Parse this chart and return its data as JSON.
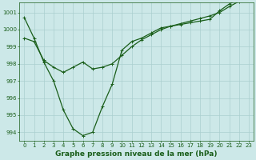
{
  "line1_x": [
    0,
    1,
    2,
    3,
    4,
    5,
    6,
    7,
    8,
    9,
    10,
    11,
    12,
    13,
    14,
    15,
    16,
    17,
    18,
    19,
    20,
    21,
    22,
    23
  ],
  "line1_y": [
    1000.7,
    999.5,
    998.1,
    997.0,
    995.3,
    994.2,
    993.8,
    994.0,
    995.5,
    996.8,
    998.8,
    999.3,
    999.5,
    999.8,
    1000.1,
    1000.2,
    1000.3,
    1000.4,
    1000.5,
    1000.6,
    1001.1,
    1001.5,
    1001.8,
    1001.9
  ],
  "line2_x": [
    0,
    1,
    2,
    3,
    4,
    5,
    6,
    7,
    8,
    9,
    10,
    11,
    12,
    13,
    14,
    15,
    16,
    17,
    18,
    19,
    20,
    21,
    22,
    23
  ],
  "line2_y": [
    999.5,
    999.3,
    998.2,
    997.8,
    997.5,
    997.8,
    998.1,
    997.7,
    997.8,
    998.0,
    998.5,
    999.0,
    999.4,
    999.7,
    1000.0,
    1000.2,
    1000.35,
    1000.5,
    1000.65,
    1000.8,
    1001.0,
    1001.35,
    1001.65,
    1001.85
  ],
  "bg_color": "#cce8e8",
  "line_color": "#1a5e1a",
  "grid_color": "#aacfcf",
  "xlabel": "Graphe pression niveau de la mer (hPa)",
  "ylim": [
    993.5,
    1001.6
  ],
  "yticks": [
    994,
    995,
    996,
    997,
    998,
    999,
    1000,
    1001
  ],
  "xticks": [
    0,
    1,
    2,
    3,
    4,
    5,
    6,
    7,
    8,
    9,
    10,
    11,
    12,
    13,
    14,
    15,
    16,
    17,
    18,
    19,
    20,
    21,
    22,
    23
  ],
  "tick_fontsize": 5.0,
  "xlabel_fontsize": 6.5,
  "marker": "+",
  "marker_size": 3.5,
  "line_width": 0.9
}
